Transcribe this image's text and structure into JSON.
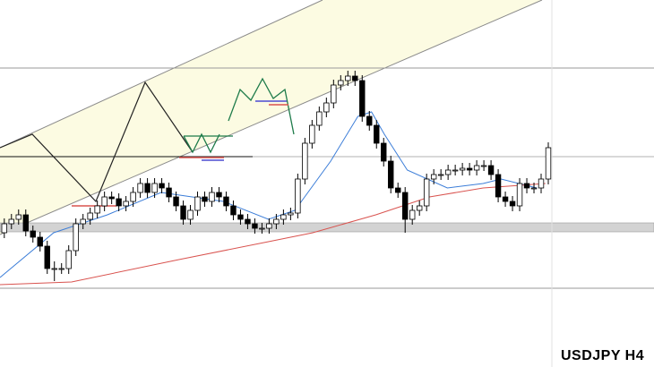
{
  "chart_data": {
    "type": "candlestick",
    "title": "USDJPY H4",
    "xlim": [
      -0.6,
      76.5
    ],
    "ylim": [
      0,
      410
    ],
    "bull_color": "#ffffff",
    "bear_color": "#000000",
    "open": [
      150,
      160,
      165,
      170,
      152,
      145,
      135,
      110,
      110,
      110,
      130,
      160,
      165,
      172,
      180,
      190,
      188,
      180,
      185,
      195,
      205,
      195,
      205,
      200,
      190,
      180,
      165,
      175,
      190,
      185,
      195,
      190,
      180,
      170,
      165,
      160,
      155,
      155,
      160,
      165,
      170,
      172,
      210,
      250,
      270,
      285,
      295,
      315,
      320,
      325,
      320,
      280,
      270,
      250,
      230,
      200,
      195,
      165,
      175,
      180,
      210,
      215,
      215,
      220,
      220,
      222,
      220,
      225,
      225,
      215,
      190,
      185,
      180,
      205,
      200,
      200,
      210
    ],
    "high": [
      166,
      171,
      176,
      176,
      158,
      151,
      141,
      118,
      116,
      136,
      166,
      171,
      178,
      186,
      196,
      196,
      194,
      191,
      201,
      211,
      211,
      211,
      211,
      206,
      196,
      186,
      181,
      196,
      196,
      201,
      201,
      196,
      186,
      176,
      171,
      166,
      161,
      166,
      171,
      176,
      178,
      216,
      256,
      276,
      291,
      301,
      321,
      326,
      331,
      331,
      326,
      286,
      276,
      256,
      236,
      206,
      201,
      181,
      186,
      216,
      221,
      221,
      226,
      226,
      228,
      228,
      231,
      231,
      231,
      221,
      196,
      191,
      211,
      211,
      206,
      216,
      251
    ],
    "low": [
      144,
      154,
      159,
      146,
      139,
      129,
      104,
      96,
      104,
      104,
      124,
      154,
      159,
      166,
      174,
      182,
      174,
      174,
      179,
      189,
      189,
      189,
      194,
      184,
      174,
      159,
      159,
      169,
      179,
      179,
      184,
      174,
      164,
      159,
      154,
      149,
      149,
      149,
      154,
      159,
      164,
      166,
      204,
      244,
      264,
      279,
      289,
      309,
      314,
      314,
      274,
      264,
      244,
      224,
      194,
      189,
      150,
      159,
      169,
      174,
      204,
      209,
      209,
      214,
      214,
      214,
      214,
      219,
      209,
      184,
      179,
      174,
      174,
      194,
      194,
      194,
      204
    ],
    "close": [
      160,
      165,
      170,
      152,
      145,
      135,
      110,
      110,
      110,
      130,
      160,
      165,
      172,
      180,
      190,
      188,
      180,
      185,
      195,
      205,
      195,
      205,
      200,
      190,
      180,
      165,
      175,
      190,
      185,
      195,
      190,
      180,
      170,
      165,
      160,
      155,
      155,
      160,
      165,
      170,
      172,
      210,
      250,
      270,
      285,
      295,
      315,
      320,
      325,
      320,
      280,
      270,
      250,
      230,
      200,
      195,
      165,
      175,
      180,
      210,
      215,
      215,
      220,
      220,
      222,
      220,
      225,
      225,
      215,
      190,
      185,
      180,
      205,
      200,
      200,
      210,
      245
    ],
    "series": [
      {
        "color": "#3b7dd8",
        "x": [
          -0.6,
          6.9,
          14.4,
          21.9,
          30.6,
          36.9,
          40.6,
          45.6,
          49.4,
          51.3,
          53.1,
          56.3,
          61.9,
          66.9,
          69.4,
          74.4
        ],
        "values": [
          100,
          150,
          170,
          195,
          185,
          165,
          175,
          230,
          280,
          285,
          260,
          220,
          200,
          205,
          210,
          200
        ]
      },
      {
        "color": "#d9534f",
        "x": [
          -0.6,
          9.4,
          24.4,
          36.9,
          43.1,
          51.9,
          59.4,
          66.9,
          75.6
        ],
        "values": [
          92,
          95,
          120,
          140,
          150,
          170,
          190,
          200,
          205
        ]
      }
    ]
  }
}
